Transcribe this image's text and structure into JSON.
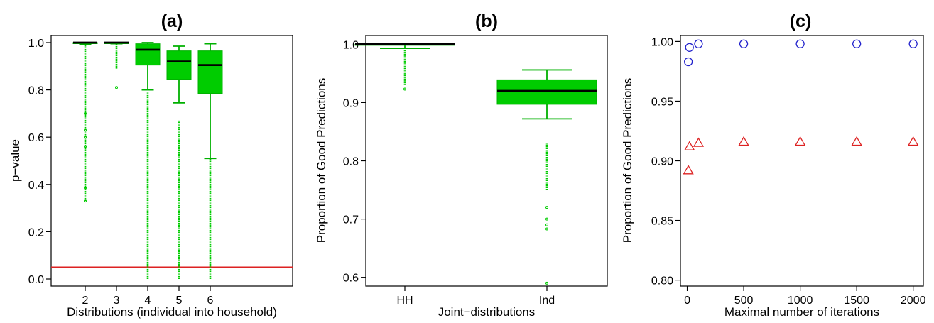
{
  "colors": {
    "box_fill": "#00cc00",
    "box_stroke": "#00b000",
    "median": "#000000",
    "reference_line": "#dd2222",
    "circle_series": "#2222cc",
    "triangle_series": "#dd2222"
  },
  "panels": [
    {
      "title": "(a)",
      "xlabel": "Distributions (individual into household)",
      "ylabel": "p−value"
    },
    {
      "title": "(b)",
      "xlabel": "Joint−distributions",
      "ylabel": "Proportion of Good Predictions"
    },
    {
      "title": "(c)",
      "xlabel": "Maximal number of iterations",
      "ylabel": "Proportion of Good Predictions"
    }
  ],
  "chart_data": [
    {
      "type": "box",
      "title": "(a)",
      "xlabel": "Distributions (individual into household)",
      "ylabel": "p−value",
      "ylim": [
        -0.03,
        1.03
      ],
      "yticks": [
        0.0,
        0.2,
        0.4,
        0.6,
        0.8,
        1.0
      ],
      "ytick_labels": [
        "0.0",
        "0.2",
        "0.4",
        "0.6",
        "0.8",
        "1.0"
      ],
      "categories": [
        "2",
        "3",
        "4",
        "5",
        "6"
      ],
      "boxes": [
        {
          "q1": 0.997,
          "median": 1.0,
          "q3": 1.0,
          "whisker_low": 0.992,
          "whisker_high": 1.0,
          "outlier_low": 0.33,
          "outlier_high": 0.99,
          "isolated": [
            0.33,
            0.385,
            0.56,
            0.6,
            0.63,
            0.7
          ]
        },
        {
          "q1": 0.998,
          "median": 1.0,
          "q3": 1.0,
          "whisker_low": 0.995,
          "whisker_high": 1.0,
          "outlier_low": 0.89,
          "outlier_high": 0.995,
          "isolated": [
            0.81
          ]
        },
        {
          "q1": 0.905,
          "median": 0.97,
          "q3": 0.995,
          "whisker_low": 0.8,
          "whisker_high": 1.0,
          "outlier_low": 0.0,
          "outlier_high": 0.79,
          "isolated": []
        },
        {
          "q1": 0.845,
          "median": 0.92,
          "q3": 0.965,
          "whisker_low": 0.745,
          "whisker_high": 0.985,
          "outlier_low": 0.0,
          "outlier_high": 0.67,
          "isolated": []
        },
        {
          "q1": 0.785,
          "median": 0.905,
          "q3": 0.965,
          "whisker_low": 0.51,
          "whisker_high": 0.995,
          "outlier_low": 0.0,
          "outlier_high": 0.51,
          "isolated": []
        }
      ],
      "reference_line": 0.05
    },
    {
      "type": "box",
      "title": "(b)",
      "xlabel": "Joint−distributions",
      "ylabel": "Proportion of Good Predictions",
      "ylim": [
        0.585,
        1.015
      ],
      "yticks": [
        0.6,
        0.7,
        0.8,
        0.9,
        1.0
      ],
      "ytick_labels": [
        "0.6",
        "0.7",
        "0.8",
        "0.9",
        "1.0"
      ],
      "categories": [
        "HH",
        "Ind"
      ],
      "boxes": [
        {
          "q1": 0.999,
          "median": 1.0,
          "q3": 1.0,
          "whisker_low": 0.993,
          "whisker_high": 1.0,
          "outlier_low": 0.93,
          "outlier_high": 0.99,
          "isolated": [
            0.923
          ]
        },
        {
          "q1": 0.897,
          "median": 0.92,
          "q3": 0.939,
          "whisker_low": 0.872,
          "whisker_high": 0.956,
          "outlier_low": 0.75,
          "outlier_high": 0.832,
          "isolated": [
            0.72,
            0.7,
            0.69,
            0.683,
            0.59
          ]
        }
      ]
    },
    {
      "type": "scatter",
      "title": "(c)",
      "xlabel": "Maximal number of iterations",
      "ylabel": "Proportion of Good Predictions",
      "xlim": [
        -60,
        2090
      ],
      "ylim": [
        0.795,
        1.005
      ],
      "xticks": [
        0,
        500,
        1000,
        1500,
        2000
      ],
      "xtick_labels": [
        "0",
        "500",
        "1000",
        "1500",
        "2000"
      ],
      "yticks": [
        0.8,
        0.85,
        0.9,
        0.95,
        1.0
      ],
      "ytick_labels": [
        "0.80",
        "0.85",
        "0.90",
        "0.95",
        "1.00"
      ],
      "series": [
        {
          "marker": "circle",
          "x": [
            10,
            20,
            100,
            500,
            1000,
            1500,
            2000
          ],
          "y": [
            0.983,
            0.995,
            0.998,
            0.998,
            0.998,
            0.998,
            0.998
          ]
        },
        {
          "marker": "triangle",
          "x": [
            10,
            20,
            100,
            500,
            1000,
            1500,
            2000
          ],
          "y": [
            0.892,
            0.912,
            0.915,
            0.916,
            0.916,
            0.916,
            0.916
          ]
        }
      ]
    }
  ]
}
